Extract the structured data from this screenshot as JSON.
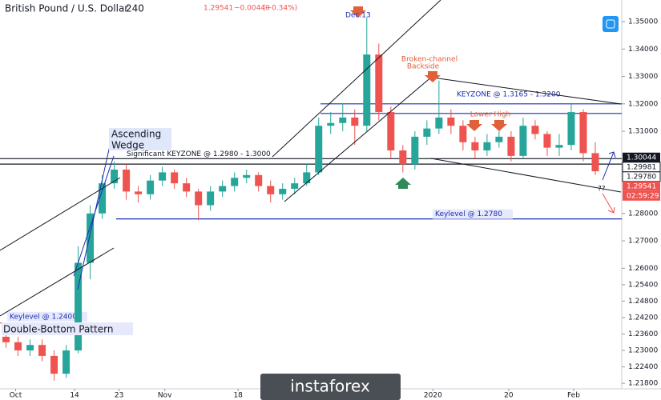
{
  "header": {
    "symbol": "British Pound / U.S. Dollar",
    "interval": "240",
    "last": "1.29541",
    "change": "−0.00440",
    "change_pct": "(−0.34%)"
  },
  "chart_data": {
    "type": "candlestick",
    "x": [
      0,
      1,
      2,
      3,
      4,
      5,
      6,
      7,
      8,
      9,
      10,
      11,
      12,
      13,
      14,
      15,
      16,
      17,
      18,
      19,
      20,
      21,
      22,
      23,
      24,
      25,
      26,
      27,
      28,
      29,
      30,
      31,
      32,
      33,
      34,
      35,
      36,
      37,
      38,
      39,
      40,
      41,
      42,
      43,
      44,
      45,
      46,
      47,
      48,
      49
    ],
    "open": [
      1.235,
      1.233,
      1.23,
      1.232,
      1.228,
      1.2215,
      1.23,
      1.262,
      1.28,
      1.291,
      1.296,
      1.288,
      1.287,
      1.292,
      1.295,
      1.291,
      1.288,
      1.283,
      1.288,
      1.29,
      1.293,
      1.294,
      1.29,
      1.287,
      1.289,
      1.291,
      1.295,
      1.312,
      1.313,
      1.315,
      1.312,
      1.338,
      1.317,
      1.303,
      1.298,
      1.308,
      1.311,
      1.315,
      1.312,
      1.306,
      1.303,
      1.306,
      1.308,
      1.301,
      1.312,
      1.309,
      1.304,
      1.305,
      1.317,
      1.302
    ],
    "high": [
      1.237,
      1.235,
      1.234,
      1.234,
      1.23,
      1.232,
      1.268,
      1.283,
      1.294,
      1.299,
      1.298,
      1.29,
      1.294,
      1.297,
      1.296,
      1.293,
      1.289,
      1.29,
      1.292,
      1.295,
      1.296,
      1.295,
      1.292,
      1.291,
      1.293,
      1.298,
      1.315,
      1.317,
      1.32,
      1.318,
      1.3515,
      1.342,
      1.319,
      1.305,
      1.31,
      1.314,
      1.3285,
      1.318,
      1.314,
      1.308,
      1.309,
      1.31,
      1.31,
      1.315,
      1.314,
      1.31,
      1.309,
      1.32,
      1.318,
      1.306
    ],
    "low": [
      1.231,
      1.228,
      1.228,
      1.226,
      1.219,
      1.22,
      1.229,
      1.256,
      1.278,
      1.289,
      1.285,
      1.284,
      1.285,
      1.29,
      1.289,
      1.286,
      1.2775,
      1.281,
      1.286,
      1.288,
      1.291,
      1.288,
      1.284,
      1.285,
      1.287,
      1.29,
      1.294,
      1.309,
      1.31,
      1.305,
      1.31,
      1.314,
      1.3,
      1.295,
      1.296,
      1.305,
      1.309,
      1.309,
      1.303,
      1.3,
      1.301,
      1.304,
      1.299,
      1.3,
      1.307,
      1.301,
      1.301,
      1.303,
      1.299,
      1.294
    ],
    "close": [
      1.233,
      1.23,
      1.232,
      1.228,
      1.2215,
      1.23,
      1.262,
      1.28,
      1.291,
      1.296,
      1.288,
      1.287,
      1.292,
      1.295,
      1.291,
      1.288,
      1.283,
      1.288,
      1.29,
      1.293,
      1.294,
      1.29,
      1.287,
      1.289,
      1.291,
      1.295,
      1.312,
      1.313,
      1.315,
      1.312,
      1.338,
      1.317,
      1.303,
      1.298,
      1.308,
      1.311,
      1.315,
      1.312,
      1.306,
      1.303,
      1.306,
      1.308,
      1.301,
      1.312,
      1.309,
      1.304,
      1.305,
      1.317,
      1.302,
      1.2954
    ],
    "up_color": "#26a69a",
    "down_color": "#ef5350",
    "xlim": [
      -0.5,
      51.2
    ],
    "xticks": [
      {
        "value": 0.8,
        "label": "Oct"
      },
      {
        "value": 5.7,
        "label": "14"
      },
      {
        "value": 9.4,
        "label": "23"
      },
      {
        "value": 13.2,
        "label": "Nov"
      },
      {
        "value": 19.3,
        "label": "18"
      },
      {
        "value": 35.5,
        "label": "2020"
      },
      {
        "value": 41.8,
        "label": "20"
      },
      {
        "value": 47.2,
        "label": "Feb"
      }
    ],
    "ylim": [
      1.216,
      1.3579
    ],
    "yticks": [
      {
        "value": 1.35,
        "label": "1.35000"
      },
      {
        "value": 1.34,
        "label": "1.34000"
      },
      {
        "value": 1.33,
        "label": "1.33000"
      },
      {
        "value": 1.32,
        "label": "1.32000"
      },
      {
        "value": 1.31,
        "label": "1.31000"
      },
      {
        "value": 1.28,
        "label": "1.28000"
      },
      {
        "value": 1.27,
        "label": "1.27000"
      },
      {
        "value": 1.26,
        "label": "1.26000"
      },
      {
        "value": 1.254,
        "label": "1.25400"
      },
      {
        "value": 1.248,
        "label": "1.24800"
      },
      {
        "value": 1.242,
        "label": "1.24200"
      },
      {
        "value": 1.236,
        "label": "1.23600"
      },
      {
        "value": 1.23,
        "label": "1.23000"
      },
      {
        "value": 1.224,
        "label": "1.22400"
      },
      {
        "value": 1.218,
        "label": "1.21800"
      }
    ],
    "levels": [
      {
        "label": "Significant KEYZONE @ 1.2980 - 1.3000",
        "values": [
          1.298,
          1.3
        ],
        "color": "#131722"
      },
      {
        "label": "KEYZONE @ 1.3165 - 1.3200",
        "values": [
          1.3165,
          1.32
        ],
        "color": "#1a2fb0"
      },
      {
        "label": "Keylevel @ 1.2780",
        "values": [
          1.278
        ],
        "color": "#1a2fb0"
      },
      {
        "label": "Keylevel @ 1.2400",
        "values": [
          1.24
        ],
        "color": "#e0603a"
      }
    ],
    "price_labels": [
      {
        "value": 1.30044,
        "label": "1.30044",
        "color": "#131722"
      },
      {
        "value": 1.29981,
        "label": "1.29981",
        "color": "#ffffff"
      },
      {
        "value": 1.2978,
        "label": "1.29780",
        "color": "#ffffff"
      },
      {
        "value": 1.29541,
        "label": "1.29541",
        "color": "#ef5350"
      }
    ],
    "countdown": "02:59:29",
    "annotations": [
      "Dec.13",
      "Broken-channel",
      "Backside",
      "Lower High",
      "Ascending",
      "Wedge",
      "Double-Bottom Pattern",
      "??"
    ]
  },
  "logo": "instaforex"
}
